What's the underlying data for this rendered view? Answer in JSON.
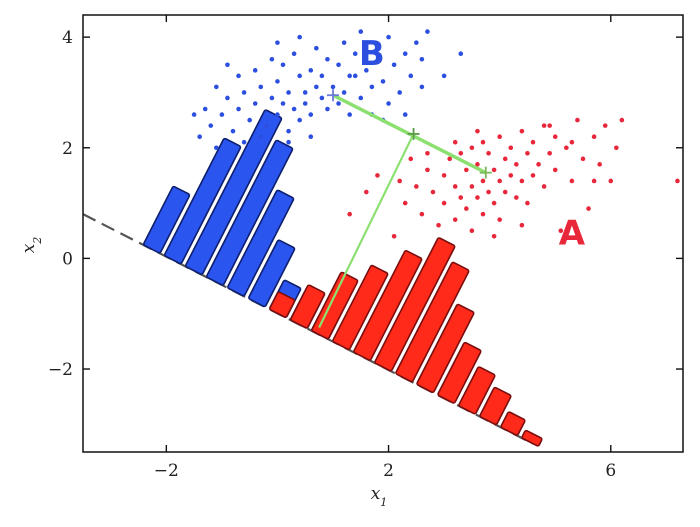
{
  "chart_data": {
    "type": "scatter",
    "title": "",
    "xlabel": "x",
    "xlabel_sub": "1",
    "ylabel": "x",
    "ylabel_sub": "2",
    "xlim": [
      -3.5,
      7.3
    ],
    "ylim": [
      -3.5,
      4.4
    ],
    "xticks": [
      -2,
      2,
      6
    ],
    "yticks": [
      -2,
      0,
      2,
      4
    ],
    "xtick_labels": [
      "−2",
      "2",
      "6"
    ],
    "ytick_labels": [
      "−2",
      "0",
      "2",
      "4"
    ],
    "grid": false,
    "legend": "none",
    "colors": {
      "class_a": "#e8273a",
      "class_b": "#2c4fe0",
      "bar_a": "#ff2a1a",
      "bar_b": "#2a55ee",
      "bar_stroke": "#7a0d0d",
      "bar_stroke_b": "#0d1f6e",
      "connector": "#8ce070",
      "projection_line": "#555555"
    },
    "annotations": [
      {
        "text": "A",
        "x": 5.3,
        "y": 0.25,
        "color": "#e8273a"
      },
      {
        "text": "B",
        "x": 1.7,
        "y": 3.5,
        "color": "#2c4fe0"
      }
    ],
    "centroids": {
      "A": [
        3.75,
        1.55
      ],
      "B": [
        1.0,
        2.95
      ],
      "mid": [
        2.45,
        2.25
      ]
    },
    "projection_line": {
      "from": [
        -3.5,
        0.8
      ],
      "to": [
        4.6,
        -3.35
      ]
    },
    "perpendicular": {
      "from": [
        2.45,
        2.25
      ],
      "to": [
        0.75,
        -1.25
      ]
    },
    "series": [
      {
        "name": "A",
        "points": [
          [
            2.3,
            1.0
          ],
          [
            2.5,
            1.3
          ],
          [
            2.6,
            0.8
          ],
          [
            2.7,
            1.6
          ],
          [
            2.8,
            1.2
          ],
          [
            2.9,
            0.6
          ],
          [
            3.0,
            1.5
          ],
          [
            3.0,
            1.0
          ],
          [
            3.1,
            1.8
          ],
          [
            3.2,
            1.3
          ],
          [
            3.2,
            0.7
          ],
          [
            3.3,
            1.9
          ],
          [
            3.3,
            1.1
          ],
          [
            3.4,
            1.6
          ],
          [
            3.4,
            0.9
          ],
          [
            3.5,
            2.0
          ],
          [
            3.5,
            1.3
          ],
          [
            3.5,
            0.5
          ],
          [
            3.6,
            1.7
          ],
          [
            3.6,
            1.1
          ],
          [
            3.7,
            2.1
          ],
          [
            3.7,
            1.4
          ],
          [
            3.7,
            0.8
          ],
          [
            3.8,
            1.9
          ],
          [
            3.8,
            1.2
          ],
          [
            3.9,
            1.6
          ],
          [
            3.9,
            1.0
          ],
          [
            4.0,
            2.2
          ],
          [
            4.0,
            1.4
          ],
          [
            4.0,
            0.7
          ],
          [
            4.1,
            1.8
          ],
          [
            4.1,
            1.2
          ],
          [
            4.2,
            2.0
          ],
          [
            4.2,
            1.5
          ],
          [
            4.3,
            1.7
          ],
          [
            4.3,
            1.1
          ],
          [
            4.4,
            2.3
          ],
          [
            4.4,
            1.4
          ],
          [
            4.5,
            1.9
          ],
          [
            4.5,
            1.0
          ],
          [
            4.6,
            2.1
          ],
          [
            4.6,
            1.5
          ],
          [
            4.7,
            1.7
          ],
          [
            4.8,
            2.4
          ],
          [
            4.8,
            1.3
          ],
          [
            4.9,
            1.9
          ],
          [
            5.0,
            2.2
          ],
          [
            5.0,
            1.6
          ],
          [
            5.1,
            0.5
          ],
          [
            5.2,
            2.0
          ],
          [
            5.3,
            1.4
          ],
          [
            5.4,
            2.5
          ],
          [
            5.5,
            1.8
          ],
          [
            5.6,
            0.9
          ],
          [
            5.7,
            2.2
          ],
          [
            5.8,
            1.7
          ],
          [
            5.9,
            2.4
          ],
          [
            6.0,
            1.4
          ],
          [
            6.1,
            2.0
          ],
          [
            6.2,
            2.5
          ],
          [
            7.2,
            1.4
          ],
          [
            1.3,
            0.8
          ],
          [
            1.6,
            1.2
          ],
          [
            1.8,
            1.5
          ],
          [
            2.1,
            0.4
          ],
          [
            2.4,
            1.8
          ],
          [
            2.7,
            1.9
          ],
          [
            3.2,
            2.1
          ],
          [
            3.9,
            0.4
          ],
          [
            4.4,
            0.6
          ],
          [
            5.3,
            2.1
          ],
          [
            5.7,
            1.4
          ],
          [
            3.6,
            2.3
          ],
          [
            4.9,
            2.4
          ],
          [
            2.2,
            1.4
          ]
        ]
      },
      {
        "name": "B",
        "points": [
          [
            -1.3,
            2.7
          ],
          [
            -1.2,
            2.4
          ],
          [
            -1.1,
            3.1
          ],
          [
            -1.0,
            2.6
          ],
          [
            -0.9,
            2.9
          ],
          [
            -0.8,
            2.3
          ],
          [
            -0.7,
            3.3
          ],
          [
            -0.7,
            2.7
          ],
          [
            -0.6,
            3.0
          ],
          [
            -0.5,
            2.5
          ],
          [
            -0.4,
            3.4
          ],
          [
            -0.4,
            2.8
          ],
          [
            -0.3,
            3.1
          ],
          [
            -0.2,
            2.4
          ],
          [
            -0.1,
            3.6
          ],
          [
            -0.1,
            2.9
          ],
          [
            0.0,
            3.2
          ],
          [
            0.0,
            2.6
          ],
          [
            0.1,
            3.5
          ],
          [
            0.1,
            2.8
          ],
          [
            0.2,
            3.0
          ],
          [
            0.2,
            2.3
          ],
          [
            0.3,
            3.7
          ],
          [
            0.3,
            2.7
          ],
          [
            0.4,
            3.3
          ],
          [
            0.4,
            2.5
          ],
          [
            0.5,
            3.0
          ],
          [
            0.5,
            2.8
          ],
          [
            0.6,
            3.4
          ],
          [
            0.6,
            2.6
          ],
          [
            0.7,
            3.1
          ],
          [
            0.7,
            3.8
          ],
          [
            0.8,
            2.9
          ],
          [
            0.8,
            3.3
          ],
          [
            0.9,
            2.7
          ],
          [
            0.9,
            3.6
          ],
          [
            1.0,
            3.1
          ],
          [
            1.1,
            2.8
          ],
          [
            1.1,
            3.5
          ],
          [
            1.2,
            3.9
          ],
          [
            1.2,
            3.0
          ],
          [
            1.3,
            2.6
          ],
          [
            1.4,
            3.3
          ],
          [
            1.4,
            3.7
          ],
          [
            1.5,
            2.9
          ],
          [
            1.6,
            3.4
          ],
          [
            1.7,
            3.1
          ],
          [
            1.7,
            2.6
          ],
          [
            1.8,
            3.8
          ],
          [
            1.9,
            3.2
          ],
          [
            2.0,
            2.8
          ],
          [
            2.1,
            3.5
          ],
          [
            2.2,
            3.0
          ],
          [
            2.3,
            2.6
          ],
          [
            2.4,
            3.3
          ],
          [
            2.5,
            3.9
          ],
          [
            2.6,
            3.1
          ],
          [
            2.7,
            4.1
          ],
          [
            3.0,
            3.3
          ],
          [
            3.3,
            3.7
          ],
          [
            -1.5,
            2.6
          ],
          [
            -1.4,
            2.2
          ],
          [
            -1.1,
            2.0
          ],
          [
            -0.6,
            2.1
          ],
          [
            0.2,
            2.1
          ],
          [
            0.6,
            2.2
          ],
          [
            -0.9,
            3.5
          ],
          [
            0.0,
            3.9
          ],
          [
            0.4,
            4.0
          ],
          [
            1.5,
            4.1
          ],
          [
            2.0,
            4.0
          ],
          [
            2.6,
            3.6
          ],
          [
            1.3,
            3.3
          ],
          [
            1.9,
            2.5
          ],
          [
            2.3,
            3.7
          ],
          [
            -0.3,
            2.2
          ]
        ]
      }
    ],
    "histogram": {
      "bin_axis_units": [
        -0.4,
        -0.3,
        -0.2,
        -0.1,
        0.0,
        0.1,
        0.2,
        0.3,
        0.4,
        0.5,
        0.6,
        0.7,
        0.8,
        0.9,
        1.0,
        1.1,
        1.2,
        1.3
      ],
      "class_b_counts": [
        3,
        6,
        8,
        7,
        5,
        3,
        1.5,
        1.5,
        0.8
      ],
      "class_a_counts": [
        0.0,
        0.0,
        0.0,
        0.0,
        0.0,
        0.9,
        1.8,
        3.0,
        3.9,
        5.2,
        6.4,
        5.7,
        4.1,
        2.7,
        2.0,
        1.5,
        0.8,
        0.4
      ]
    }
  },
  "text": {
    "a_label": "A",
    "b_label": "B",
    "x_axis_label": "x",
    "x_axis_sub": "1",
    "y_axis_label": "x",
    "y_axis_sub": "2"
  }
}
